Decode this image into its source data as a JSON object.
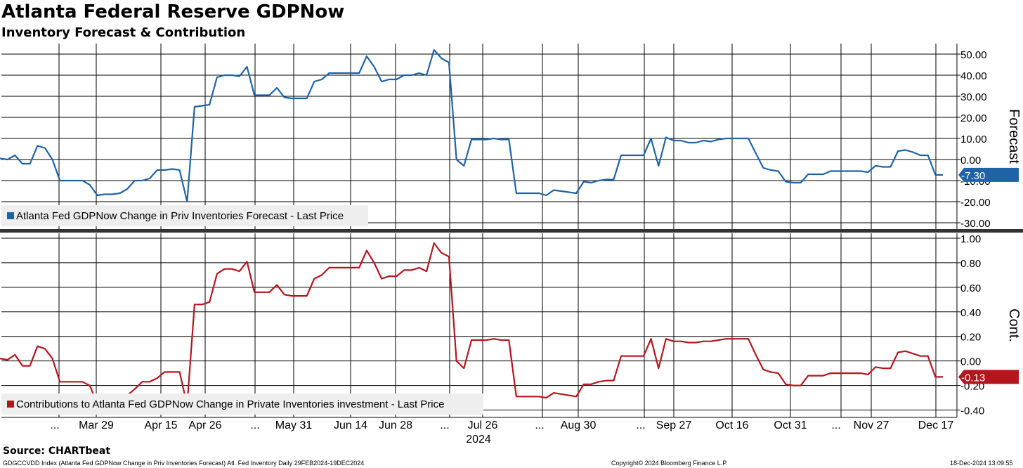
{
  "header": {
    "title": "Atlanta Federal Reserve GDPNow",
    "subtitle": "Inventory Forecast & Contribution"
  },
  "footer": {
    "source": "Source: CHARTbeat",
    "ticker": "GDGCCVDD Index (Atlanta Fed GDPNow Change in Priv Inventories Forecast) Atl. Fed Inventory  Daily 29FEB2024-19DEC2024",
    "copyright": "Copyright© 2024 Bloomberg Finance L.P.",
    "timestamp": "18-Dec-2024 13:09:55"
  },
  "x_axis": {
    "tick_labels": [
      "...",
      "Mar 29",
      "Apr 15",
      "Apr 26",
      "...",
      "May 31",
      "Jun 14",
      "Jun 28",
      "...",
      "Jul 26",
      "...",
      "Aug 30",
      "...",
      "Sep 27",
      "Oct 16",
      "Oct 31",
      "...",
      "Nov 27",
      "Dec 17"
    ],
    "year_label": "2024"
  },
  "chart_data": [
    {
      "type": "line",
      "ylabel": "Forecast",
      "ylim": [
        -33,
        55
      ],
      "y_ticks": [
        "50.00",
        "40.00",
        "30.00",
        "20.00",
        "10.00",
        "0.00",
        "-10.00",
        "-20.00",
        "-30.00"
      ],
      "grid": true,
      "legend_position": "bottom-left",
      "last_value_label": "-7.30",
      "color": "#1f63a6",
      "series": [
        {
          "name": "Atlanta Fed GDPNow Change in Priv Inventories Forecast - Last Price",
          "values": [
            0.5,
            0,
            2,
            -2,
            -2,
            6.5,
            5.5,
            0,
            -10,
            -10,
            -10,
            -10,
            -12,
            -17,
            -16.5,
            -16.5,
            -16,
            -14,
            -10,
            -10,
            -9,
            -5,
            -5,
            -4.5,
            -5,
            -20,
            25,
            25.5,
            26,
            39,
            40,
            40,
            39.5,
            44,
            30.5,
            30.5,
            30.5,
            34,
            29.5,
            29,
            29,
            29,
            37,
            38,
            41,
            41,
            41,
            41,
            41,
            49,
            44,
            37,
            38,
            38,
            40,
            40,
            41,
            40,
            52,
            48,
            46,
            0,
            -3,
            9.5,
            9.5,
            9.5,
            10,
            9.5,
            9.5,
            -16,
            -16,
            -16,
            -16,
            -17,
            -14.5,
            -15,
            -15.5,
            -16,
            -10.5,
            -11,
            -10,
            -9.5,
            -9.5,
            2,
            2,
            2,
            2,
            10,
            -3,
            10.5,
            9,
            9,
            8,
            8,
            9,
            8.5,
            9.5,
            10,
            10,
            10,
            10,
            3,
            -4,
            -5,
            -5.5,
            -10.5,
            -11,
            -11,
            -7,
            -7,
            -7,
            -5.5,
            -5.5,
            -5.5,
            -5.5,
            -5.5,
            -6,
            -3,
            -3.5,
            -3.5,
            4,
            4.5,
            3.5,
            2,
            2,
            -7.3,
            -7.3
          ]
        }
      ]
    },
    {
      "type": "line",
      "ylabel": "Cont.",
      "ylim": [
        -0.46,
        1.04
      ],
      "y_ticks": [
        "1.00",
        "0.80",
        "0.60",
        "0.40",
        "0.20",
        "0.00",
        "-0.20",
        "-0.40"
      ],
      "grid": true,
      "legend_position": "bottom-left",
      "last_value_label": "-0.13",
      "color": "#b5161e",
      "series": [
        {
          "name": "Contributions to Atlanta Fed GDPNow Change in Private Inventories investment - Last Price",
          "values": [
            0.02,
            0.01,
            0.05,
            -0.04,
            -0.04,
            0.12,
            0.1,
            0.02,
            -0.17,
            -0.17,
            -0.17,
            -0.17,
            -0.2,
            -0.35,
            -0.33,
            -0.32,
            -0.32,
            -0.28,
            -0.23,
            -0.17,
            -0.17,
            -0.14,
            -0.09,
            -0.09,
            -0.09,
            -0.36,
            0.46,
            0.46,
            0.48,
            0.71,
            0.75,
            0.75,
            0.73,
            0.81,
            0.56,
            0.56,
            0.56,
            0.62,
            0.54,
            0.53,
            0.53,
            0.53,
            0.67,
            0.7,
            0.76,
            0.76,
            0.76,
            0.76,
            0.76,
            0.9,
            0.8,
            0.67,
            0.69,
            0.69,
            0.74,
            0.74,
            0.76,
            0.73,
            0.96,
            0.88,
            0.85,
            0.0,
            -0.06,
            0.17,
            0.17,
            0.17,
            0.18,
            0.17,
            0.17,
            -0.29,
            -0.29,
            -0.29,
            -0.29,
            -0.3,
            -0.26,
            -0.27,
            -0.28,
            -0.29,
            -0.19,
            -0.19,
            -0.17,
            -0.16,
            -0.16,
            0.04,
            0.04,
            0.04,
            0.04,
            0.18,
            -0.06,
            0.18,
            0.16,
            0.16,
            0.15,
            0.15,
            0.16,
            0.16,
            0.17,
            0.18,
            0.18,
            0.18,
            0.18,
            0.05,
            -0.07,
            -0.09,
            -0.1,
            -0.19,
            -0.2,
            -0.2,
            -0.12,
            -0.12,
            -0.12,
            -0.1,
            -0.1,
            -0.1,
            -0.1,
            -0.1,
            -0.11,
            -0.05,
            -0.06,
            -0.06,
            0.07,
            0.08,
            0.06,
            0.04,
            0.04,
            -0.13,
            -0.13
          ]
        }
      ]
    }
  ]
}
